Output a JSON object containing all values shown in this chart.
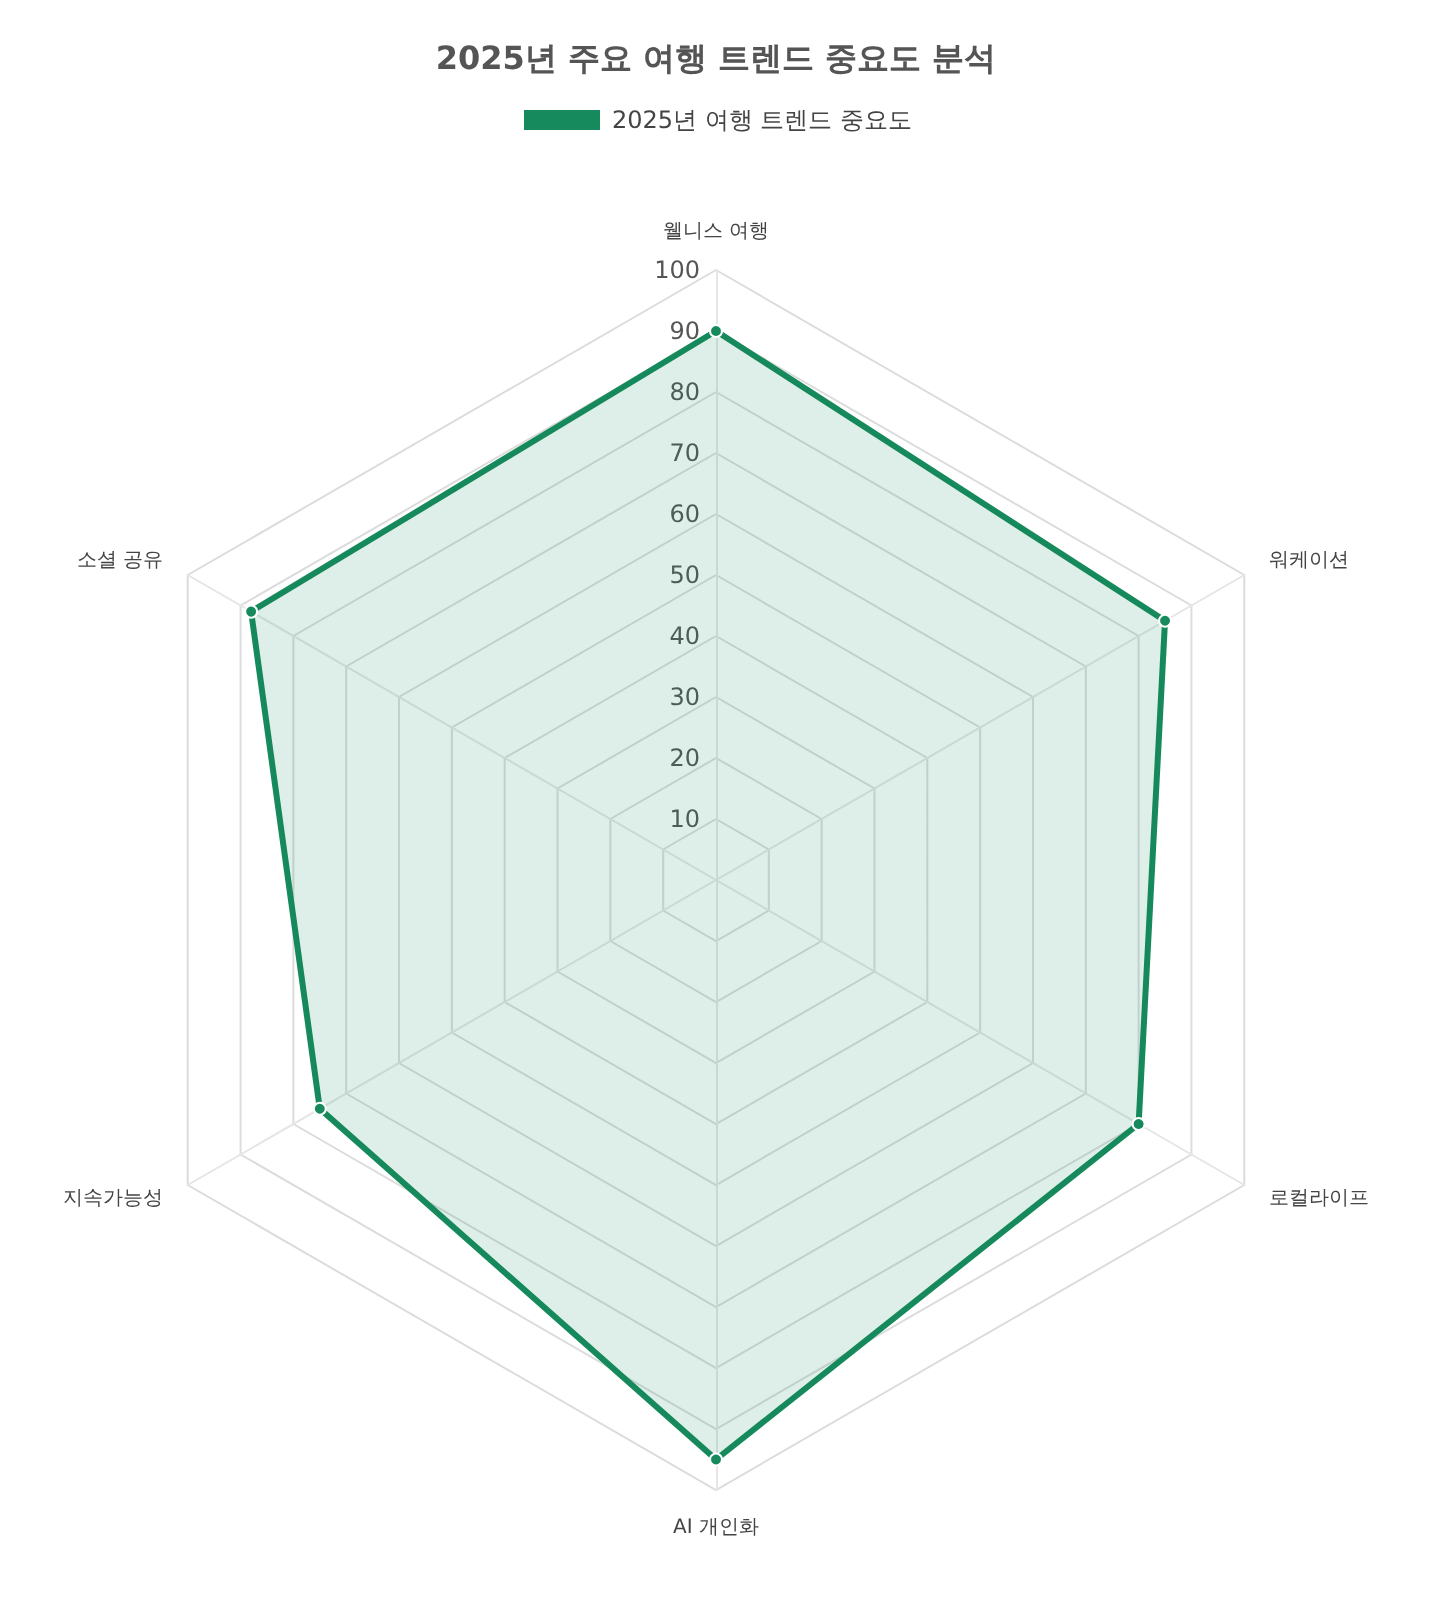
{
  "chart_data": {
    "type": "radar",
    "title": "2025년 주요 여행 트렌드 중요도 분석",
    "categories": [
      "웰니스 여행",
      "워케이션",
      "로컬라이프",
      "AI 개인화",
      "지속가능성",
      "소셜 공유"
    ],
    "series": [
      {
        "name": "2025년 여행 트렌드 중요도",
        "color": "#168a5c",
        "values": [
          90,
          85,
          80,
          95,
          75,
          88
        ]
      }
    ],
    "ylim": [
      0,
      100
    ],
    "yticks": [
      10,
      20,
      30,
      40,
      50,
      60,
      70,
      80,
      90,
      100
    ],
    "legend": "top",
    "marker": "circle",
    "grid": true
  }
}
